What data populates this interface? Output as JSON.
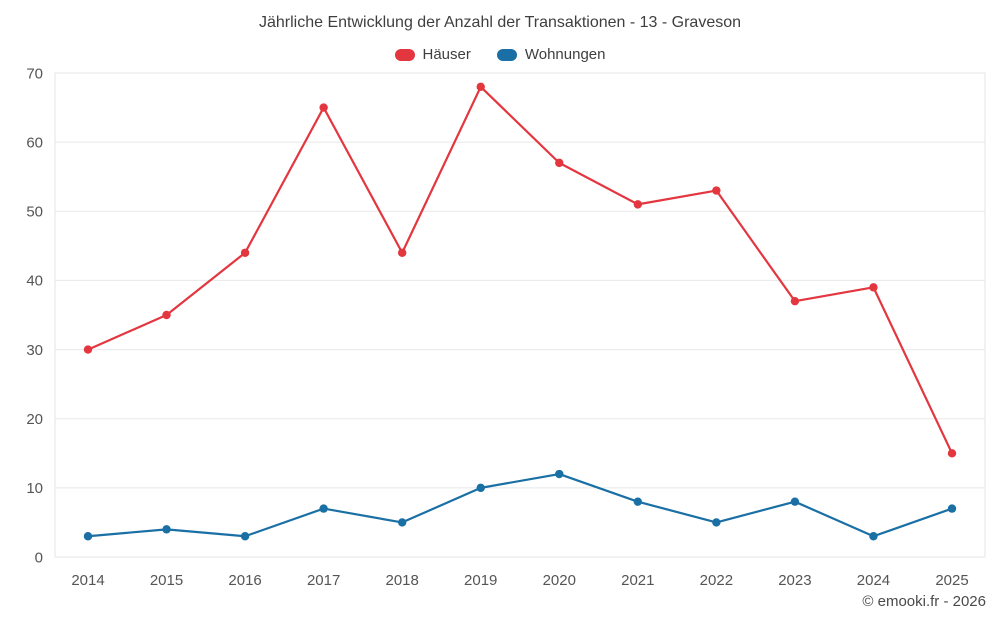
{
  "title": "Jährliche Entwicklung der Anzahl der Transaktionen - 13 - Graveson",
  "footer": "© emooki.fr - 2026",
  "legend": [
    {
      "label": "Häuser",
      "color": "#e3363f"
    },
    {
      "label": "Wohnungen",
      "color": "#1a6fa5"
    }
  ],
  "chart_data": {
    "type": "line",
    "title": "Jährliche Entwicklung der Anzahl der Transaktionen - 13 - Graveson",
    "categories": [
      "2014",
      "2015",
      "2016",
      "2017",
      "2018",
      "2019",
      "2020",
      "2021",
      "2022",
      "2023",
      "2024",
      "2025"
    ],
    "series": [
      {
        "name": "Häuser",
        "color": "#e3363f",
        "values": [
          30,
          35,
          44,
          65,
          44,
          68,
          57,
          51,
          53,
          37,
          39,
          15
        ]
      },
      {
        "name": "Wohnungen",
        "color": "#1a6fa5",
        "values": [
          3,
          4,
          3,
          7,
          5,
          10,
          12,
          8,
          5,
          8,
          3,
          7
        ]
      }
    ],
    "xlabel": "",
    "ylabel": "",
    "ylim": [
      0,
      70
    ],
    "ytick_step": 10,
    "grid": true,
    "legend_position": "top",
    "marker": "circle"
  }
}
